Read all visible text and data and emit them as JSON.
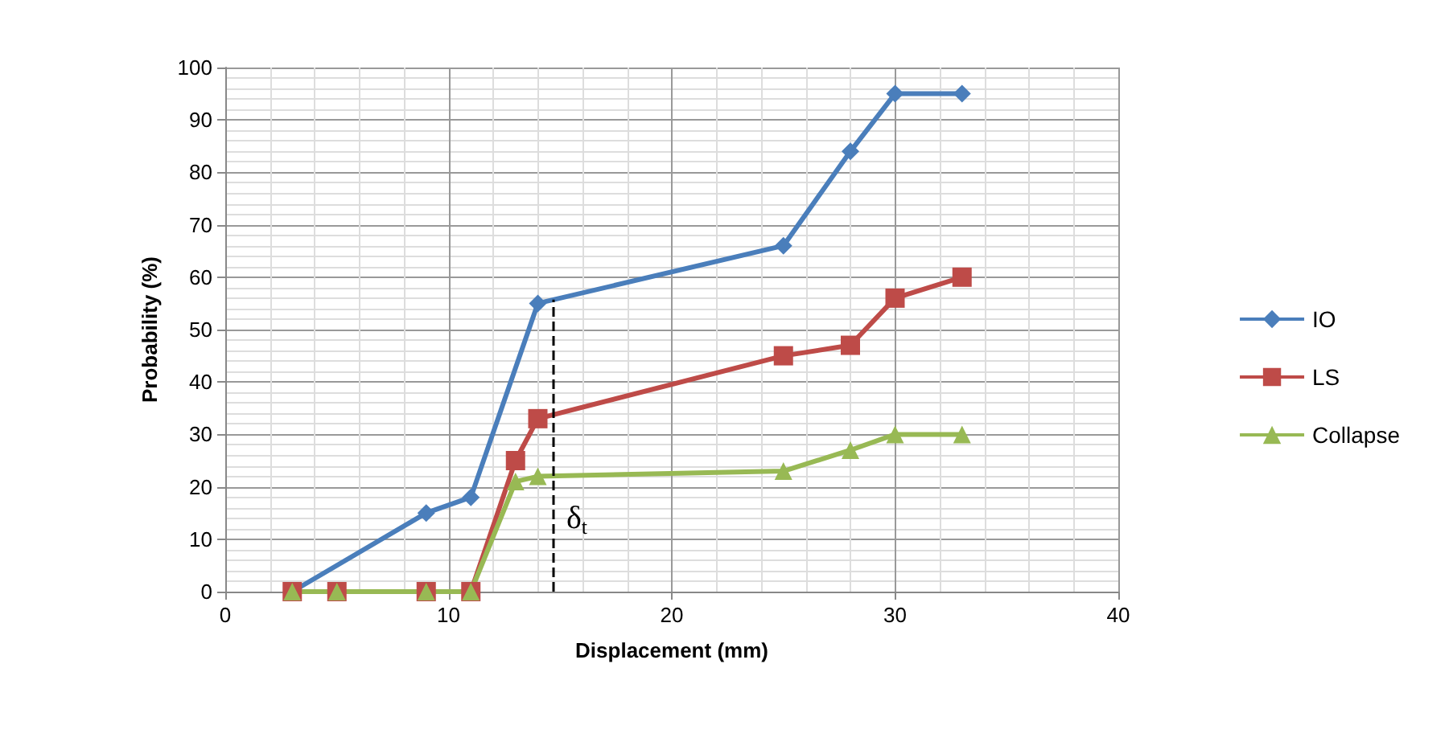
{
  "chart_data": {
    "type": "line",
    "xlabel": "Displacement (mm)",
    "ylabel": "Probability (%)",
    "x": [
      3,
      5,
      9,
      11,
      13,
      14,
      25,
      28,
      30,
      33
    ],
    "series": [
      {
        "name": "IO",
        "color": "#4a7ebb",
        "marker": "diamond",
        "values": [
          0,
          null,
          15,
          18,
          null,
          55,
          66,
          84,
          95,
          95
        ]
      },
      {
        "name": "LS",
        "color": "#be4b48",
        "marker": "square",
        "values": [
          0,
          0,
          0,
          0,
          25,
          33,
          45,
          47,
          56,
          60
        ]
      },
      {
        "name": "Collapse",
        "color": "#98b954",
        "marker": "triangle",
        "values": [
          0,
          0,
          0,
          0,
          21,
          22,
          23,
          27,
          30,
          30
        ]
      }
    ],
    "xlim": [
      0,
      40
    ],
    "xticks": [
      0,
      10,
      20,
      30,
      40
    ],
    "ylim": [
      0,
      100
    ],
    "yticks": [
      0,
      10,
      20,
      30,
      40,
      50,
      60,
      70,
      80,
      90,
      100
    ],
    "grid": true,
    "legend": "right",
    "line_style": "solid",
    "ref_lines": [
      {
        "axis": "x",
        "value": 14.7,
        "label": "δ$_{t}$",
        "line_style": "dashed",
        "color": "#000000"
      }
    ]
  }
}
